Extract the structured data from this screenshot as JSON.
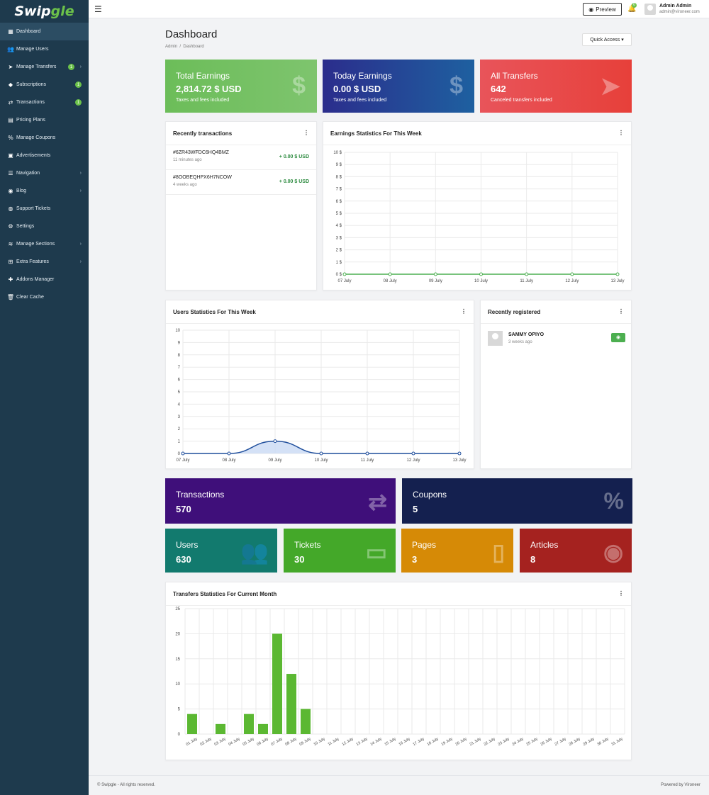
{
  "brand": {
    "part1": "Swip",
    "part2": "gle"
  },
  "sidebar": {
    "items": [
      {
        "label": "Dashboard",
        "icon": "dashboard-icon",
        "glyph": "▦",
        "active": true
      },
      {
        "label": "Manage Users",
        "icon": "users-icon",
        "glyph": "👥"
      },
      {
        "label": "Manage Transfers",
        "icon": "paper-plane-icon",
        "glyph": "➤",
        "badge": "1",
        "chev": true
      },
      {
        "label": "Subscriptions",
        "icon": "diamond-icon",
        "glyph": "◆",
        "badge": "1"
      },
      {
        "label": "Transactions",
        "icon": "exchange-icon",
        "glyph": "⇄",
        "badge": "1"
      },
      {
        "label": "Pricing Plans",
        "icon": "list-icon",
        "glyph": "▤"
      },
      {
        "label": "Manage Coupons",
        "icon": "percent-icon",
        "glyph": "%"
      },
      {
        "label": "Advertisements",
        "icon": "ad-icon",
        "glyph": "▣"
      },
      {
        "label": "Navigation",
        "icon": "bars-icon",
        "glyph": "☰",
        "chev": true
      },
      {
        "label": "Blog",
        "icon": "rss-icon",
        "glyph": "◉",
        "chev": true
      },
      {
        "label": "Support Tickets",
        "icon": "globe-icon",
        "glyph": "◍"
      },
      {
        "label": "Settings",
        "icon": "gear-icon",
        "glyph": "⚙"
      },
      {
        "label": "Manage Sections",
        "icon": "layers-icon",
        "glyph": "≋",
        "chev": true
      },
      {
        "label": "Extra Features",
        "icon": "plus-square-icon",
        "glyph": "⊞",
        "chev": true
      },
      {
        "label": "Addons Manager",
        "icon": "puzzle-icon",
        "glyph": "✚"
      },
      {
        "label": "Clear Cache",
        "icon": "trash-icon",
        "glyph": "🗑"
      }
    ]
  },
  "topbar": {
    "preview_label": "Preview",
    "notifications": "0",
    "user_name": "Admin Admin",
    "user_email": "admin@vironeer.com"
  },
  "page": {
    "title": "Dashboard",
    "breadcrumb": [
      "Admin",
      "Dashboard"
    ],
    "quick_access": "Quick Access"
  },
  "stats": [
    {
      "title": "Total Earnings",
      "value": "2,814.72 $ USD",
      "sub": "Taxes and fees included",
      "icon": "dollar-icon",
      "glyph": "$",
      "color": "#6cbd59"
    },
    {
      "title": "Today Earnings",
      "value": "0.00 $ USD",
      "sub": "Taxes and fees included",
      "icon": "dollar-icon",
      "glyph": "$",
      "color": "#2a3d8f"
    },
    {
      "title": "All Transfers",
      "value": "642",
      "sub": "Canceled transfers included",
      "icon": "paper-plane-icon",
      "glyph": "➤",
      "color": "#e74c3c"
    }
  ],
  "recent_tx": {
    "title": "Recently transactions",
    "items": [
      {
        "id": "#6ZR43WFDC6HQ4BMZ",
        "time": "11 minutes ago",
        "amount": "+ 0.00 $ USD"
      },
      {
        "id": "#8OOBEQHPX6H7NCOW",
        "time": "4 weeks ago",
        "amount": "+ 0.00 $ USD"
      }
    ]
  },
  "recent_reg": {
    "title": "Recently registered",
    "items": [
      {
        "name": "SAMMY OPIYO",
        "time": "3 weeks ago"
      }
    ]
  },
  "counters_top": [
    {
      "title": "Transactions",
      "value": "570",
      "icon": "exchange-icon",
      "glyph": "⇄",
      "color": "#3f0f7a"
    },
    {
      "title": "Coupons",
      "value": "5",
      "icon": "percent-icon",
      "glyph": "%",
      "color": "#14204f"
    }
  ],
  "counters_bottom": [
    {
      "title": "Users",
      "value": "630",
      "icon": "users-icon",
      "glyph": "👥",
      "color": "#127a6e"
    },
    {
      "title": "Tickets",
      "value": "30",
      "icon": "ticket-icon",
      "glyph": "▭",
      "color": "#44a829"
    },
    {
      "title": "Pages",
      "value": "3",
      "icon": "file-icon",
      "glyph": "▯",
      "color": "#d68a06"
    },
    {
      "title": "Articles",
      "value": "8",
      "icon": "rss-icon",
      "glyph": "◉",
      "color": "#a5221f"
    }
  ],
  "chart_data": [
    {
      "type": "line",
      "title": "Earnings Statistics For This Week",
      "categories": [
        "07 July",
        "08 July",
        "09 July",
        "10 July",
        "11 July",
        "12 July",
        "13 July"
      ],
      "values": [
        0,
        0,
        0,
        0,
        0,
        0,
        0
      ],
      "ylim": [
        0,
        10
      ],
      "yticks": [
        "0 $",
        "1 $",
        "2 $",
        "3 $",
        "4 $",
        "5 $",
        "6 $",
        "7 $",
        "8 $",
        "9 $",
        "10 $"
      ],
      "color": "#4caf50",
      "grid": true
    },
    {
      "type": "area",
      "title": "Users Statistics For This Week",
      "categories": [
        "07 July",
        "08 July",
        "09 July",
        "10 July",
        "11 July",
        "12 July",
        "13 July"
      ],
      "values": [
        0,
        0,
        1,
        0,
        0,
        0,
        0
      ],
      "ylim": [
        0,
        10
      ],
      "yticks": [
        "0",
        "1",
        "2",
        "3",
        "4",
        "5",
        "6",
        "7",
        "8",
        "9",
        "10"
      ],
      "color": "#1f4e9c",
      "grid": true
    },
    {
      "type": "bar",
      "title": "Transfers Statistics For Current Month",
      "categories": [
        "01 July",
        "02 July",
        "03 July",
        "04 July",
        "05 July",
        "06 July",
        "07 July",
        "08 July",
        "09 July",
        "10 July",
        "11 July",
        "12 July",
        "13 July",
        "14 July",
        "15 July",
        "16 July",
        "17 July",
        "18 July",
        "19 July",
        "20 July",
        "21 July",
        "22 July",
        "23 July",
        "24 July",
        "25 July",
        "26 July",
        "27 July",
        "28 July",
        "29 July",
        "30 July",
        "31 July"
      ],
      "values": [
        4,
        0,
        2,
        0,
        4,
        2,
        20,
        12,
        5,
        0,
        0,
        0,
        0,
        0,
        0,
        0,
        0,
        0,
        0,
        0,
        0,
        0,
        0,
        0,
        0,
        0,
        0,
        0,
        0,
        0,
        0
      ],
      "ylim": [
        0,
        25
      ],
      "yticks": [
        "0",
        "5",
        "10",
        "15",
        "20",
        "25"
      ],
      "color": "#5bb832",
      "grid": true
    }
  ],
  "footer": {
    "left": "© Swipgle - All rights reserved.",
    "right": "Powered by Vironeer"
  }
}
